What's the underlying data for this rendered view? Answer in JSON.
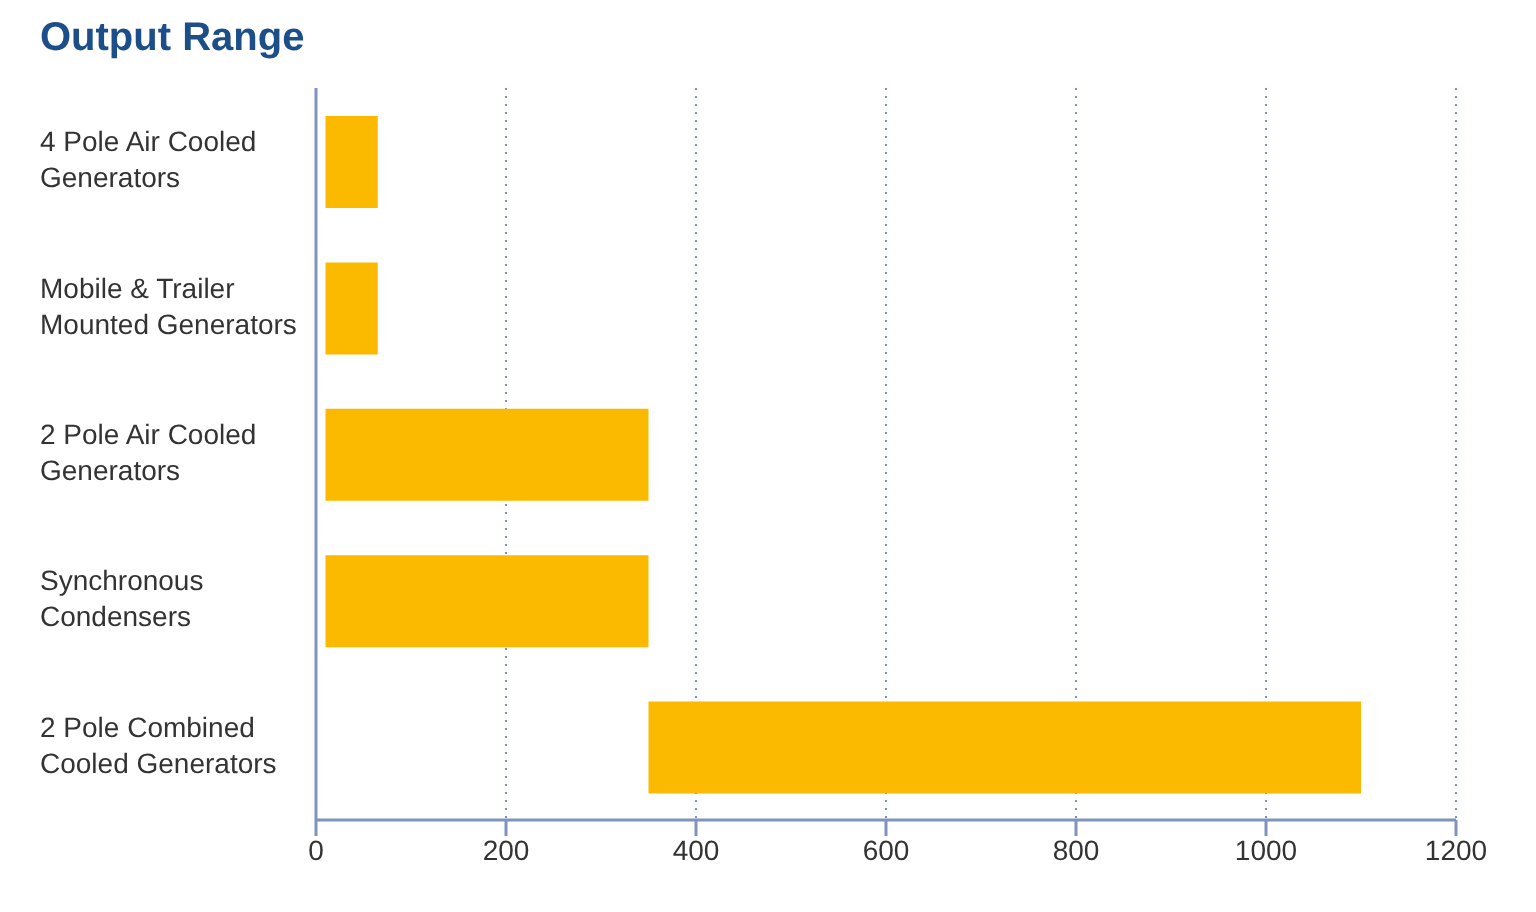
{
  "chart_data": {
    "type": "bar",
    "orientation": "horizontal",
    "title": "Output Range",
    "categories": [
      "4 Pole Air Cooled Generators",
      "Mobile & Trailer Mounted Generators",
      "2 Pole Air Cooled Generators",
      "Synchronous Condensers",
      "2 Pole Combined Cooled Generators"
    ],
    "base": [
      10,
      10,
      10,
      10,
      350
    ],
    "values": [
      55,
      55,
      340,
      340,
      750
    ],
    "color": "#fbb900",
    "xlim": [
      0,
      1200
    ],
    "xticks": [
      0,
      200,
      400,
      600,
      800,
      1000,
      1200
    ],
    "grid": "x"
  }
}
